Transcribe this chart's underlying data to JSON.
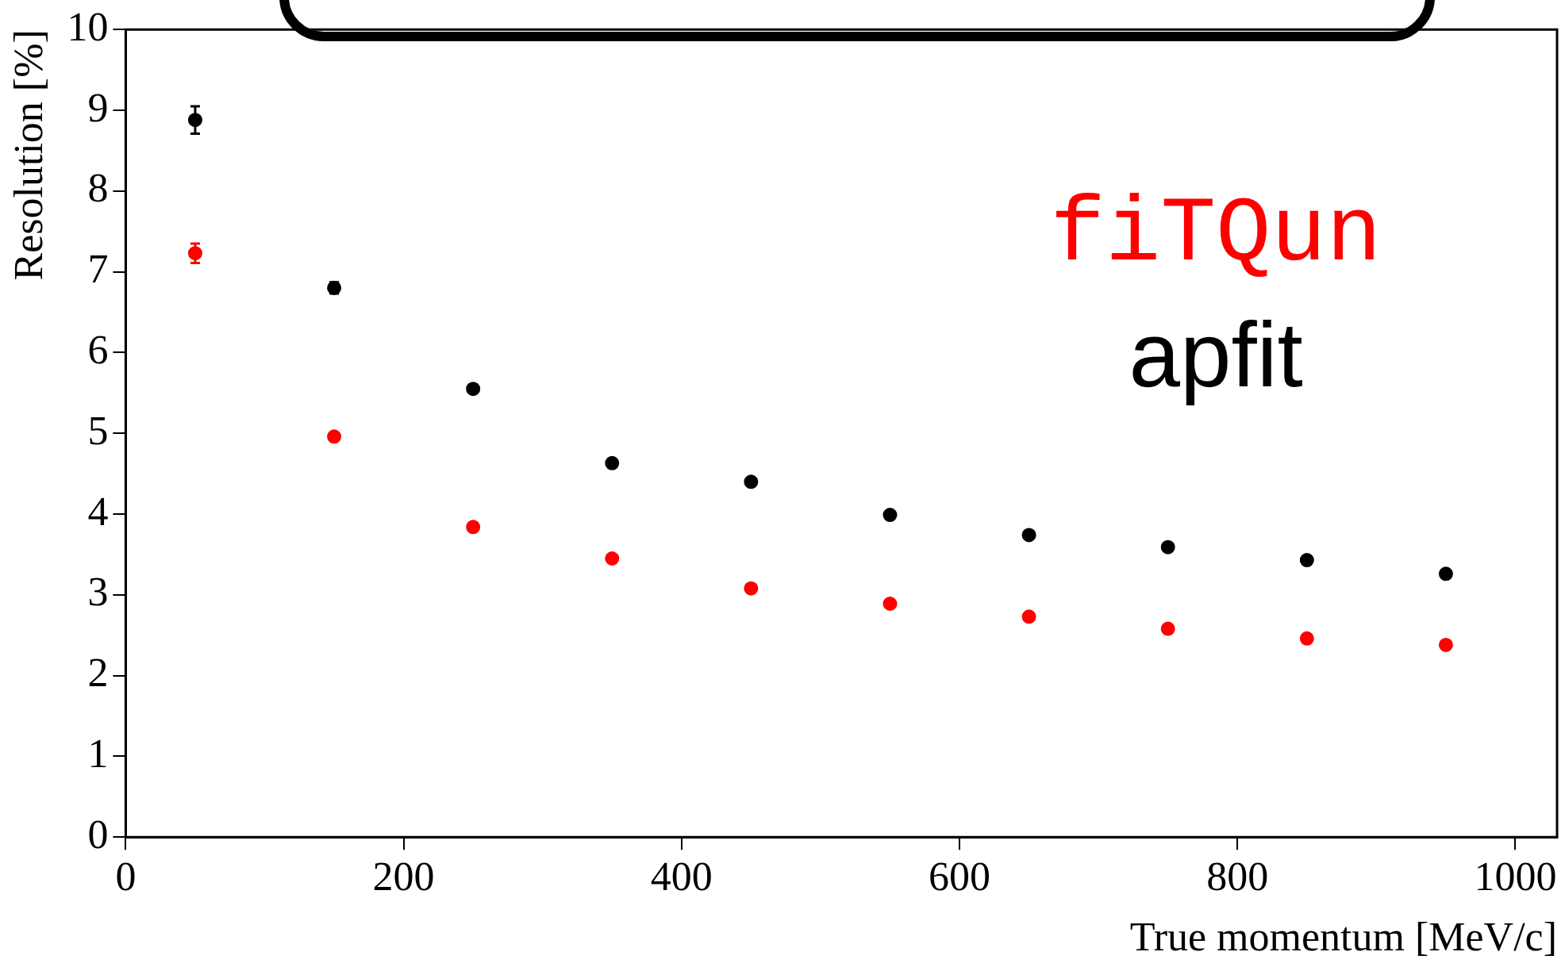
{
  "chart_data": {
    "type": "scatter",
    "xlabel": "True momentum [MeV/c]",
    "ylabel": "Resolution [%]",
    "x": [
      50,
      150,
      250,
      350,
      450,
      550,
      650,
      750,
      850,
      950
    ],
    "series": [
      {
        "name": "fiTQun",
        "color": "#ff0000",
        "values": [
          7.23,
          4.96,
          3.84,
          3.45,
          3.08,
          2.89,
          2.73,
          2.58,
          2.46,
          2.38
        ],
        "errors": [
          0.12,
          null,
          null,
          null,
          null,
          null,
          null,
          null,
          null,
          null
        ]
      },
      {
        "name": "apfit",
        "color": "#000000",
        "values": [
          8.88,
          6.8,
          5.55,
          4.63,
          4.4,
          3.99,
          3.74,
          3.59,
          3.43,
          3.26
        ],
        "errors": [
          0.17,
          0.07,
          null,
          null,
          null,
          null,
          null,
          null,
          null,
          null
        ]
      }
    ],
    "xlim": [
      0,
      1030
    ],
    "xticks": [
      0,
      200,
      400,
      600,
      800,
      1000
    ],
    "ylim": [
      0,
      10
    ],
    "yticks": [
      0,
      1,
      2,
      3,
      4,
      5,
      6,
      7,
      8,
      9,
      10
    ],
    "marker": "circle",
    "legend": "top right",
    "grid": false
  }
}
